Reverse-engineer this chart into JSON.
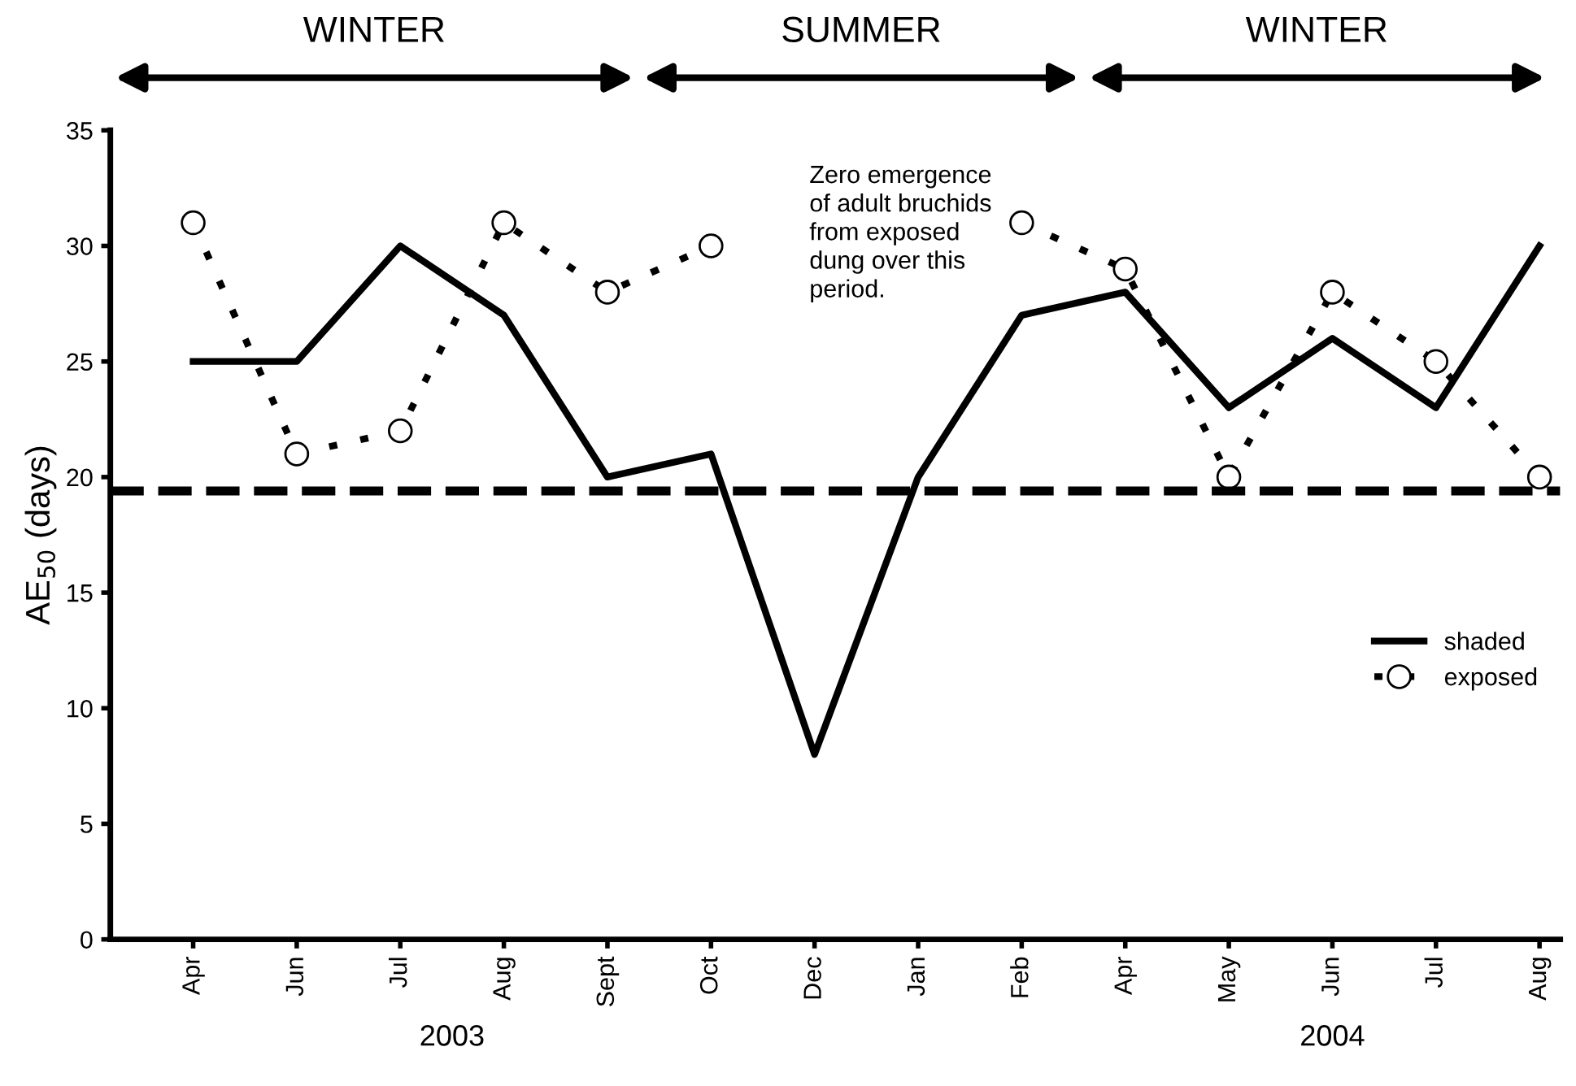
{
  "chart_data": {
    "type": "line",
    "categories": [
      "Apr",
      "Jun",
      "Jul",
      "Aug",
      "Sept",
      "Oct",
      "Dec",
      "Jan",
      "Feb",
      "Apr",
      "May",
      "Jun",
      "Jul",
      "Aug"
    ],
    "ylabel": "AE$_{50}$ (days)",
    "ylim": [
      0,
      35
    ],
    "yticks": [
      0,
      5,
      10,
      15,
      20,
      25,
      30,
      35
    ],
    "series": [
      {
        "name": "shaded",
        "color": "#000000",
        "line_style": "solid",
        "marker": "none",
        "values": [
          25,
          25,
          30,
          27,
          20,
          21,
          8,
          20,
          27,
          28,
          23,
          26,
          23,
          30
        ]
      },
      {
        "name": "exposed",
        "color": "#000000",
        "line_style": "dotted",
        "marker": "circle",
        "values": [
          31,
          21,
          22,
          31,
          28,
          30,
          null,
          null,
          31,
          29,
          20,
          28,
          25,
          20
        ]
      }
    ],
    "ref_lines": [
      {
        "axis": "y",
        "value": 19.4,
        "line_style": "dashed",
        "color": "#000000"
      }
    ],
    "annotations": [
      "WINTER",
      "SUMMER",
      "WINTER",
      "Zero emergence\nof adult bruchids\nfrom exposed\ndung over this\nperiod.",
      "2003",
      "2004"
    ],
    "legend": "bottom right",
    "grid": false
  }
}
